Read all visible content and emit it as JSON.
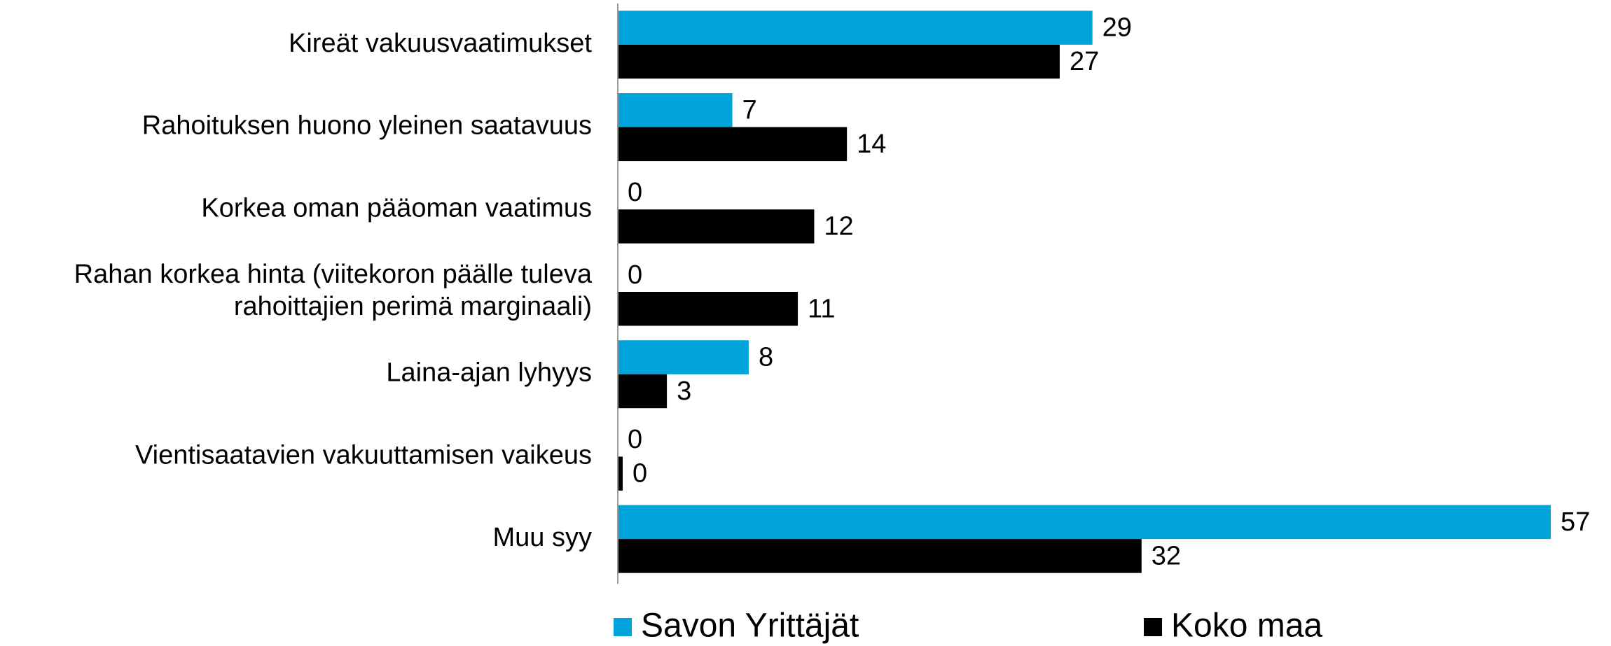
{
  "chart_data": {
    "type": "bar",
    "orientation": "horizontal",
    "categories": [
      "Kireät vakuusvaatimukset",
      "Rahoituksen huono yleinen saatavuus",
      "Korkea oman pääoman vaatimus",
      "Rahan korkea hinta (viitekoron päälle tuleva\nrahoittajien perimä marginaali)",
      "Laina-ajan lyhyys",
      "Vientisaatavien vakuuttamisen vaikeus",
      "Muu syy"
    ],
    "series": [
      {
        "name": "Savon Yrittäjät",
        "color": "#00a3da",
        "values": [
          29,
          7,
          0,
          0,
          8,
          0,
          57
        ]
      },
      {
        "name": "Koko maa",
        "color": "#000000",
        "values": [
          27,
          14,
          12,
          11,
          3,
          0.3,
          32
        ],
        "value_labels": [
          "27",
          "14",
          "12",
          "11",
          "3",
          "0",
          "32"
        ]
      }
    ],
    "legend": "bottom"
  }
}
